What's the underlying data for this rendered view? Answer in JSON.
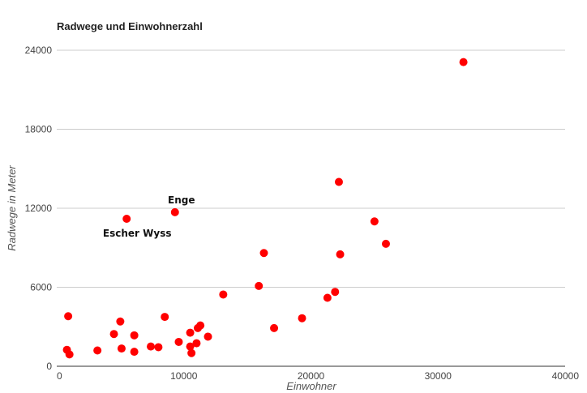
{
  "chart_data": {
    "type": "scatter",
    "title": "Radwege und Einwohnerzahl",
    "xlabel": "Einwohner",
    "ylabel": "Radwege in Meter",
    "xlim": [
      0,
      40000
    ],
    "ylim": [
      0,
      24000
    ],
    "x_ticks": [
      "0",
      "10000",
      "20000",
      "30000",
      "40000"
    ],
    "y_ticks": [
      "0",
      "6000",
      "12000",
      "18000",
      "24000"
    ],
    "grid": "horizontal",
    "legend": "none",
    "marker_color": "#ff0000",
    "points": [
      {
        "x": 800,
        "y": 1250
      },
      {
        "x": 900,
        "y": 3800
      },
      {
        "x": 1000,
        "y": 900
      },
      {
        "x": 3200,
        "y": 1200
      },
      {
        "x": 4500,
        "y": 2450
      },
      {
        "x": 5000,
        "y": 3400
      },
      {
        "x": 5100,
        "y": 1350
      },
      {
        "x": 5500,
        "y": 11200
      },
      {
        "x": 6100,
        "y": 2350
      },
      {
        "x": 6100,
        "y": 1100
      },
      {
        "x": 7400,
        "y": 1500
      },
      {
        "x": 8000,
        "y": 1450
      },
      {
        "x": 8500,
        "y": 3750
      },
      {
        "x": 9300,
        "y": 11700
      },
      {
        "x": 9600,
        "y": 1850
      },
      {
        "x": 10500,
        "y": 2550
      },
      {
        "x": 10500,
        "y": 1500
      },
      {
        "x": 10600,
        "y": 1000
      },
      {
        "x": 11000,
        "y": 1750
      },
      {
        "x": 11100,
        "y": 2900
      },
      {
        "x": 11300,
        "y": 3100
      },
      {
        "x": 11900,
        "y": 2250
      },
      {
        "x": 13100,
        "y": 5450
      },
      {
        "x": 15900,
        "y": 6100
      },
      {
        "x": 16300,
        "y": 8600
      },
      {
        "x": 17100,
        "y": 2900
      },
      {
        "x": 19300,
        "y": 3650
      },
      {
        "x": 21300,
        "y": 5200
      },
      {
        "x": 21900,
        "y": 5650
      },
      {
        "x": 22200,
        "y": 14000
      },
      {
        "x": 22300,
        "y": 8500
      },
      {
        "x": 25000,
        "y": 11000
      },
      {
        "x": 25900,
        "y": 9300
      },
      {
        "x": 32000,
        "y": 23100
      }
    ],
    "annotations": [
      {
        "text": "Enge",
        "x": 9300,
        "y": 11700,
        "position": "above"
      },
      {
        "text": "Escher Wyss",
        "x": 5500,
        "y": 11200,
        "position": "below"
      }
    ]
  }
}
